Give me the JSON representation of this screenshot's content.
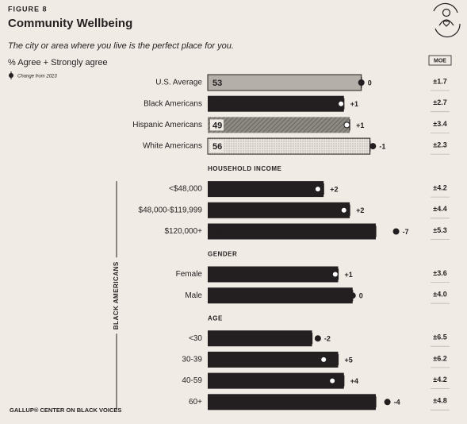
{
  "header": {
    "figure": "FIGURE 8",
    "title": "Community Wellbeing",
    "question": "The city or area where you live is the perfect place for you.",
    "measure": "% Agree + Strongly agree",
    "legend": "Change from 2023",
    "moe": "MOE"
  },
  "chart_data": {
    "type": "dot-bar",
    "bracket_label": "BLACK AMERICANS",
    "sections": [
      {
        "rows": [
          {
            "label": "U.S. Average",
            "value": 53,
            "change": 0,
            "change_label": "0",
            "moe": 1.7,
            "moe_label": "±1.7",
            "color": "#b4b0a9"
          },
          {
            "label": "Black Americans",
            "value": 47,
            "change": 1,
            "change_label": "+1",
            "moe": 2.7,
            "moe_label": "±2.7",
            "color": "#231f20"
          },
          {
            "label": "Hispanic Americans",
            "value": 49,
            "change": 1,
            "change_label": "+1",
            "moe": 3.4,
            "moe_label": "±3.4",
            "color": "#8d8983",
            "pattern": "hatch"
          },
          {
            "label": "White Americans",
            "value": 56,
            "change": -1,
            "change_label": "-1",
            "moe": 2.3,
            "moe_label": "±2.3",
            "color": "#e4e0d8",
            "pattern": "dots"
          }
        ]
      },
      {
        "heading": "HOUSEHOLD INCOME",
        "rows": [
          {
            "label": "<$48,000",
            "value": 40,
            "change": 2,
            "change_label": "+2",
            "moe": 4.2,
            "moe_label": "±4.2",
            "color": "#231f20"
          },
          {
            "label": "$48,000-$119,999",
            "value": 49,
            "change": 2,
            "change_label": "+2",
            "moe": 4.4,
            "moe_label": "±4.4",
            "color": "#231f20"
          },
          {
            "label": "$120,000+",
            "value": 58,
            "change": -7,
            "change_label": "-7",
            "moe": 5.3,
            "moe_label": "±5.3",
            "color": "#231f20"
          }
        ]
      },
      {
        "heading": "GENDER",
        "rows": [
          {
            "label": "Female",
            "value": 45,
            "change": 1,
            "change_label": "+1",
            "moe": 3.6,
            "moe_label": "±3.6",
            "color": "#231f20"
          },
          {
            "label": "Male",
            "value": 50,
            "change": 0,
            "change_label": "0",
            "moe": 4.0,
            "moe_label": "±4.0",
            "color": "#231f20"
          }
        ]
      },
      {
        "heading": "AGE",
        "rows": [
          {
            "label": "<30",
            "value": 36,
            "change": -2,
            "change_label": "-2",
            "moe": 6.5,
            "moe_label": "±6.5",
            "color": "#231f20"
          },
          {
            "label": "30-39",
            "value": 45,
            "change": 5,
            "change_label": "+5",
            "moe": 6.2,
            "moe_label": "±6.2",
            "color": "#231f20"
          },
          {
            "label": "40-59",
            "value": 47,
            "change": 4,
            "change_label": "+4",
            "moe": 4.2,
            "moe_label": "±4.2",
            "color": "#231f20"
          },
          {
            "label": "60+",
            "value": 58,
            "change": -4,
            "change_label": "-4",
            "moe": 4.8,
            "moe_label": "±4.8",
            "color": "#231f20"
          }
        ]
      }
    ]
  },
  "footer": "GALLUP® CENTER ON BLACK VOICES"
}
